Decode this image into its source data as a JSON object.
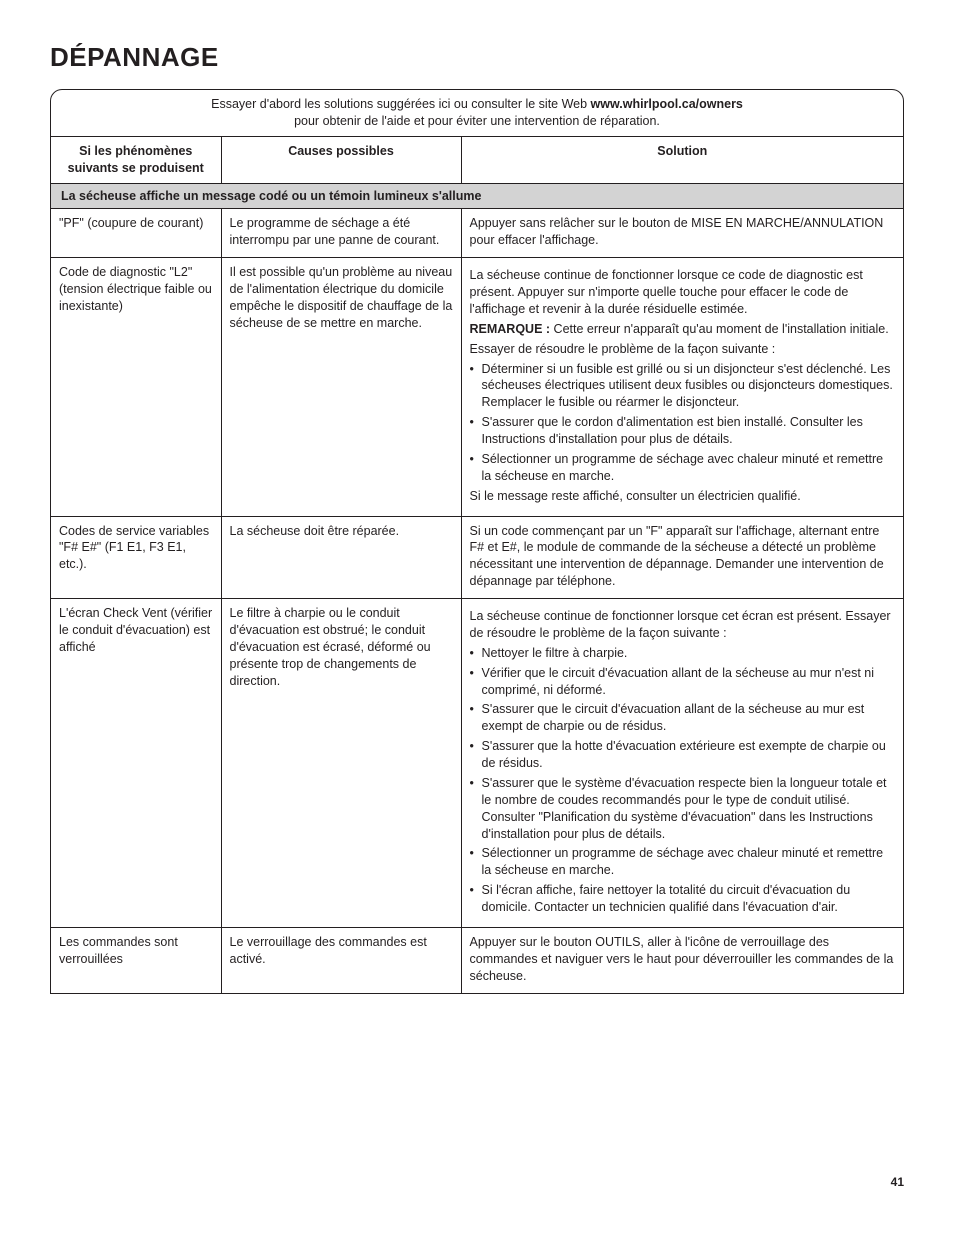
{
  "title": "DÉPANNAGE",
  "intro_pre": "Essayer d'abord les solutions suggérées ici ou consulter le site Web ",
  "intro_bold": "www.whirlpool.ca/owners",
  "intro_post": " pour obtenir de l'aide et pour éviter une intervention de réparation.",
  "headers": {
    "c1": "Si les phénomènes suivants se produisent",
    "c2": "Causes possibles",
    "c3": "Solution"
  },
  "section_label": "La sécheuse affiche un message codé ou un témoin lumineux s'allume",
  "r1": {
    "c1": "\"PF\" (coupure de courant)",
    "c2": "Le programme de séchage a été interrompu par une panne de courant.",
    "c3": "Appuyer sans relâcher sur le bouton de MISE EN MARCHE/ANNULATION pour effacer l'affichage."
  },
  "r2": {
    "c1": "Code de diagnostic \"L2\" (tension électrique faible ou inexistante)",
    "c2": "Il est possible qu'un problème au niveau de l'alimentation électrique du domicile empêche le dispositif de chauffage de la sécheuse de se mettre en marche.",
    "p1": "La sécheuse continue de fonctionner lorsque ce code de diagnostic est présent. Appuyer sur n'importe quelle touche pour effacer le code de l'affichage et revenir à la durée résiduelle estimée.",
    "remark_label": "REMARQUE :",
    "remark_text": " Cette erreur n'apparaît qu'au moment de l'installation initiale.",
    "p2": "Essayer de résoudre le problème de la façon suivante :",
    "b1": "Déterminer si un fusible est grillé ou si un disjoncteur s'est déclenché. Les sécheuses électriques utilisent deux fusibles ou disjoncteurs domestiques. Remplacer le fusible ou réarmer le disjoncteur.",
    "b2": "S'assurer que le cordon d'alimentation est bien installé. Consulter les Instructions d'installation pour plus de détails.",
    "b3": "Sélectionner un programme de séchage avec chaleur minuté et remettre la sécheuse en marche.",
    "p3": "Si le message reste affiché, consulter un électricien qualifié."
  },
  "r3": {
    "c1": "Codes de service variables \"F# E#\" (F1 E1, F3 E1, etc.).",
    "c2": "La sécheuse doit être réparée.",
    "c3": "Si un code commençant par un \"F\" apparaît sur l'affichage, alternant entre F# et E#, le module de commande de la sécheuse a détecté un problème nécessitant une intervention de dépannage. Demander une intervention de dépannage par téléphone."
  },
  "r4": {
    "c1": "L'écran Check Vent (vérifier le conduit d'évacuation) est affiché",
    "c2": "Le filtre à charpie ou le conduit d'évacuation est obstrué; le conduit d'évacuation est écrasé, déformé ou présente trop de changements de direction.",
    "p1": "La sécheuse continue de fonctionner lorsque cet écran est présent. Essayer de résoudre le problème de la façon suivante :",
    "b1": "Nettoyer le filtre à charpie.",
    "b2": "Vérifier que le circuit d'évacuation allant de la sécheuse au mur n'est ni comprimé, ni déformé.",
    "b3": "S'assurer que le circuit d'évacuation allant de la sécheuse au mur est exempt de charpie ou de résidus.",
    "b4": "S'assurer que la hotte d'évacuation extérieure est exempte de charpie ou de résidus.",
    "b5": "S'assurer que le système d'évacuation respecte bien la longueur totale et le nombre de coudes recommandés pour le type de conduit utilisé. Consulter \"Planification du système d'évacuation\" dans les Instructions d'installation pour plus de détails.",
    "b6": "Sélectionner un programme de séchage avec chaleur minuté et remettre la sécheuse en marche.",
    "b7": "Si l'écran affiche, faire nettoyer la totalité du circuit d'évacuation du domicile. Contacter un technicien qualifié dans l'évacuation d'air."
  },
  "r5": {
    "c1": "Les commandes sont verrouillées",
    "c2": "Le verrouillage des commandes est activé.",
    "c3": "Appuyer sur le bouton OUTILS, aller à l'icône de verrouillage des commandes et naviguer vers le haut pour déverrouiller les commandes de la sécheuse."
  },
  "page_number": "41"
}
